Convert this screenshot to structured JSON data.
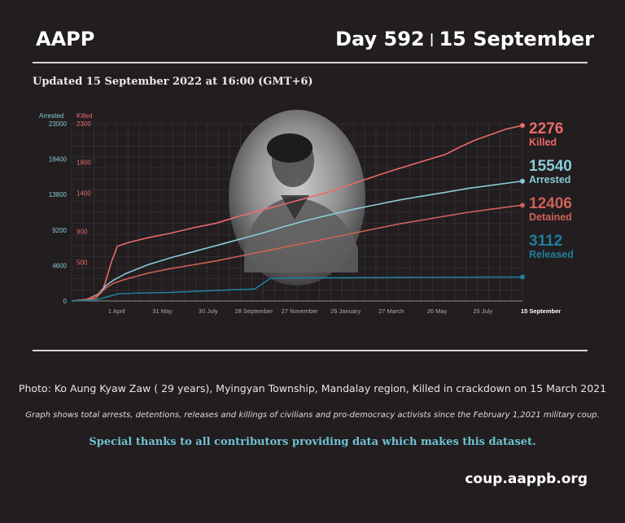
{
  "header": {
    "org": "AAPP",
    "day": "Day 592",
    "separator": "|",
    "date": "15 September"
  },
  "updated": "Updated 15 September 2022 at 16:00 (GMT+6)",
  "colors": {
    "background": "#221d1f",
    "arrested": "#87ccd8",
    "killed": "#ea6a6a",
    "detained": "#cf6157",
    "released": "#1f7f99",
    "grid": "#3f3a3c"
  },
  "chart_data": {
    "type": "line",
    "title": "",
    "left_axis": {
      "name": "Arrested",
      "ticks": [
        0,
        4600,
        9200,
        13800,
        18400,
        23000
      ],
      "ylim": [
        0,
        23000
      ]
    },
    "right_axis": {
      "name": "Killed",
      "ticks": [
        500,
        900,
        1400,
        1800,
        2300
      ],
      "ylim": [
        0,
        2300
      ]
    },
    "x_ticks": [
      "1 April",
      "31 May",
      "30 July",
      "28 September",
      "27 November",
      "26 January",
      "27 March",
      "26 May",
      "25 July",
      "15 September"
    ],
    "x_days": [
      59,
      119,
      179,
      239,
      299,
      359,
      419,
      479,
      539,
      591
    ],
    "xlim": [
      0,
      591
    ],
    "grid": true,
    "series": [
      {
        "name": "Killed",
        "axis": "right",
        "end_value": "2276",
        "label": "Killed",
        "color": "#ea6a6a",
        "x": [
          0,
          20,
          32,
          40,
          46,
          52,
          60,
          75,
          100,
          130,
          160,
          190,
          220,
          250,
          280,
          310,
          340,
          380,
          420,
          460,
          490,
          510,
          530,
          550,
          570,
          591
        ],
        "y": [
          0,
          10,
          40,
          120,
          300,
          500,
          710,
          760,
          820,
          880,
          950,
          1010,
          1100,
          1180,
          1260,
          1340,
          1420,
          1560,
          1690,
          1810,
          1900,
          2000,
          2090,
          2160,
          2230,
          2276
        ]
      },
      {
        "name": "Arrested",
        "axis": "left",
        "end_value": "15540",
        "label": "Arrested",
        "color": "#87ccd8",
        "x": [
          0,
          20,
          35,
          45,
          55,
          70,
          100,
          130,
          160,
          190,
          220,
          250,
          280,
          310,
          340,
          370,
          400,
          430,
          460,
          490,
          520,
          550,
          580,
          591
        ],
        "y": [
          0,
          200,
          900,
          2000,
          2700,
          3500,
          4700,
          5600,
          6400,
          7200,
          8000,
          8800,
          9700,
          10500,
          11200,
          11900,
          12500,
          13100,
          13600,
          14100,
          14600,
          15000,
          15400,
          15540
        ]
      },
      {
        "name": "Detained",
        "axis": "left",
        "end_value": "12406",
        "label": "Detained",
        "color": "#cf6157",
        "x": [
          0,
          20,
          35,
          45,
          55,
          70,
          100,
          130,
          160,
          190,
          220,
          250,
          280,
          310,
          340,
          370,
          400,
          430,
          460,
          490,
          520,
          550,
          580,
          591
        ],
        "y": [
          0,
          200,
          800,
          1700,
          2300,
          2800,
          3600,
          4200,
          4700,
          5200,
          5800,
          6400,
          7000,
          7600,
          8200,
          8800,
          9400,
          10000,
          10500,
          11000,
          11500,
          11900,
          12300,
          12406
        ]
      },
      {
        "name": "Released",
        "axis": "left",
        "end_value": "3112",
        "label": "Released",
        "color": "#1f7f99",
        "x": [
          0,
          30,
          45,
          60,
          80,
          100,
          130,
          160,
          200,
          240,
          260,
          300,
          360,
          420,
          480,
          540,
          591
        ],
        "y": [
          0,
          100,
          500,
          900,
          1000,
          1050,
          1100,
          1250,
          1400,
          1550,
          2900,
          3000,
          3020,
          3040,
          3060,
          3090,
          3112
        ]
      }
    ]
  },
  "photo_caption": "Photo: Ko Aung Kyaw Zaw ( 29 years), Myingyan Township, Mandalay region, Killed in crackdown on 15 March 2021",
  "graph_note": "Graph shows total arrests, detentions, releases and killings of civilians and pro-democracy activists since the February 1,2021 military coup.",
  "thanks": "Special thanks to all contributors providing data which makes this dataset.",
  "url": "coup.aappb.org"
}
